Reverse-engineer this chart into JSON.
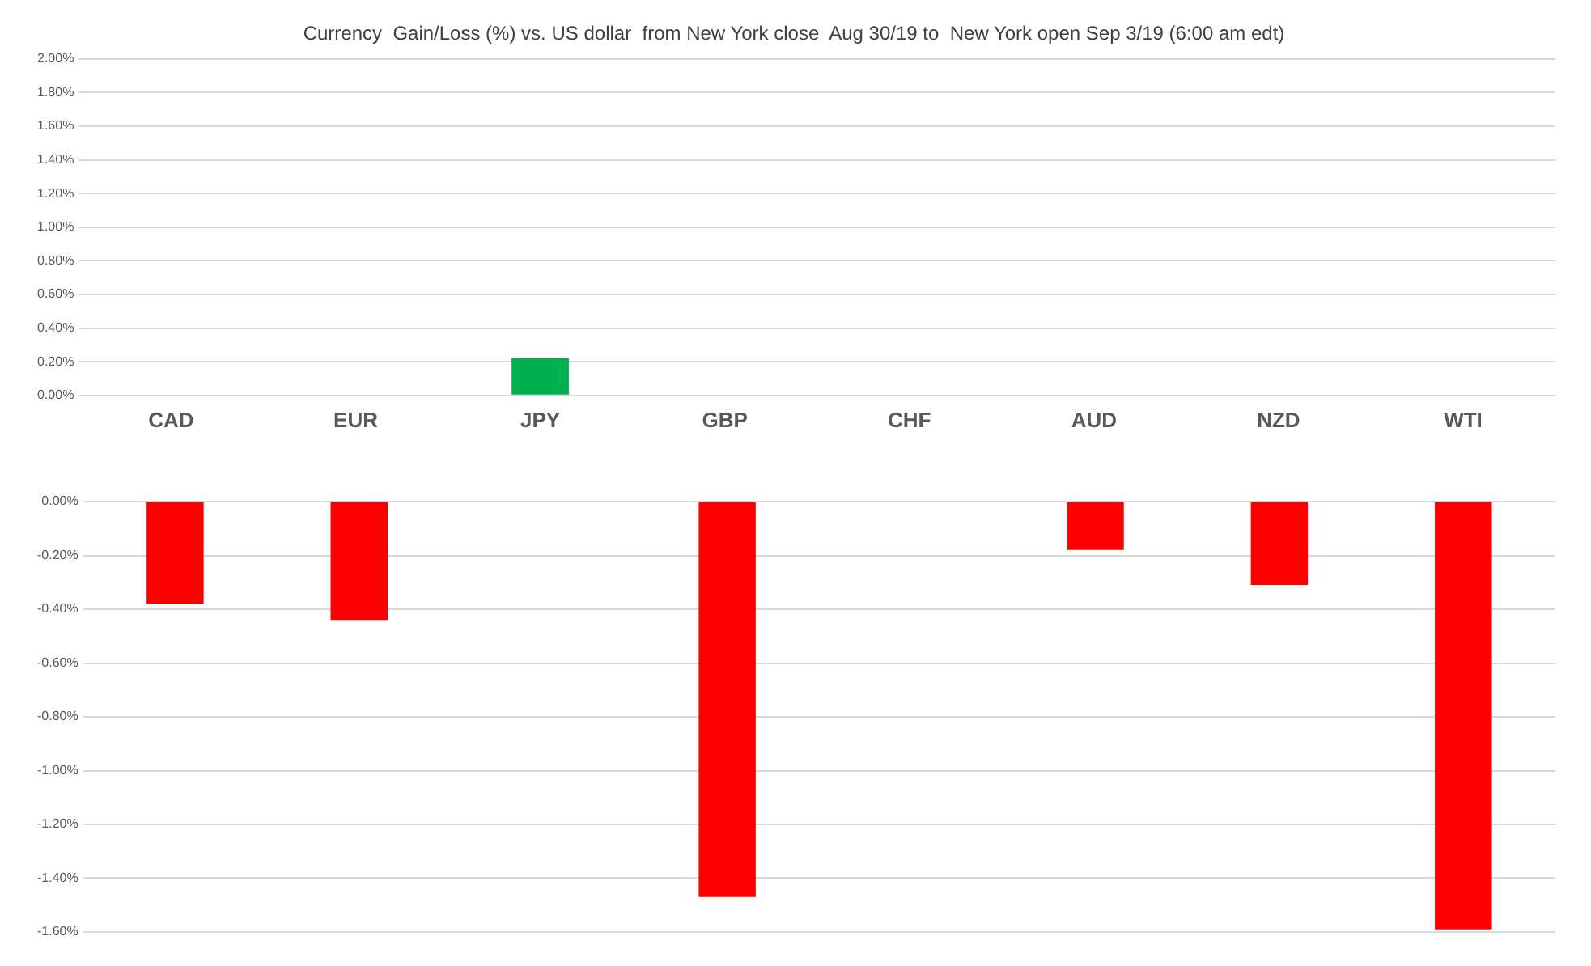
{
  "chart_data": [
    {
      "type": "bar",
      "title": "Currency  Gain/Loss (%) vs. US dollar  from New York close  Aug 30/19 to  New York open Sep 3/19 (6:00 am edt)",
      "categories": [
        "CAD",
        "EUR",
        "JPY",
        "GBP",
        "CHF",
        "AUD",
        "NZD",
        "WTI"
      ],
      "values": [
        null,
        null,
        0.22,
        null,
        null,
        null,
        null,
        null
      ],
      "color": "#00b050",
      "ylim": [
        0,
        2
      ],
      "yticks": [
        {
          "value": 0,
          "label": "0.00%"
        },
        {
          "value": 0.2,
          "label": "0.20%"
        },
        {
          "value": 0.4,
          "label": "0.40%"
        },
        {
          "value": 0.6,
          "label": "0.60%"
        },
        {
          "value": 0.8,
          "label": "0.80%"
        },
        {
          "value": 1,
          "label": "1.00%"
        },
        {
          "value": 1.2,
          "label": "1.20%"
        },
        {
          "value": 1.4,
          "label": "1.40%"
        },
        {
          "value": 1.6,
          "label": "1.60%"
        },
        {
          "value": 1.8,
          "label": "1.80%"
        },
        {
          "value": 2,
          "label": "2.00%"
        }
      ],
      "grid": "y"
    },
    {
      "type": "bar",
      "categories": [
        null,
        null,
        null,
        null,
        null,
        null,
        null,
        null
      ],
      "values": [
        -0.38,
        -0.44,
        null,
        -1.47,
        null,
        -0.18,
        -0.31,
        -1.59
      ],
      "color": "#ff0000",
      "ylim": [
        -1.6,
        0
      ],
      "yticks": [
        {
          "value": -1.6,
          "label": "-1.60%"
        },
        {
          "value": -1.4,
          "label": "-1.40%"
        },
        {
          "value": -1.2,
          "label": "-1.20%"
        },
        {
          "value": -1,
          "label": "-1.00%"
        },
        {
          "value": -0.8,
          "label": "-0.80%"
        },
        {
          "value": -0.6,
          "label": "-0.60%"
        },
        {
          "value": -0.4,
          "label": "-0.40%"
        },
        {
          "value": -0.2,
          "label": "-0.20%"
        },
        {
          "value": 0,
          "label": "0.00%"
        }
      ],
      "grid": "y",
      "tick_labels": "y"
    }
  ]
}
